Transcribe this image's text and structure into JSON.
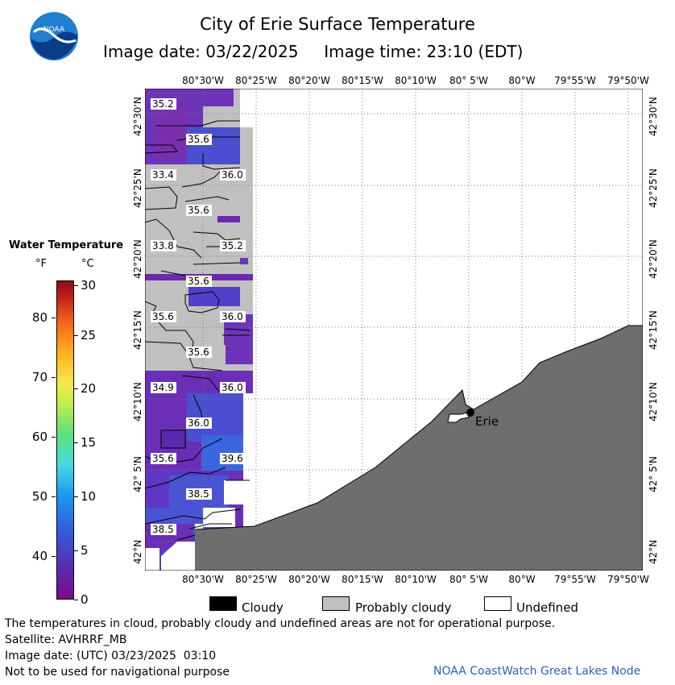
{
  "title": "City of Erie Surface Temperature",
  "subtitle": {
    "date": "Image date: 03/22/2025",
    "time": "Image time: 23:10 (EDT)"
  },
  "logo_text": "NOAA",
  "map": {
    "lon_labels": [
      "80°30'W",
      "80°25'W",
      "80°20'W",
      "80°15'W",
      "80°10'W",
      "80° 5'W",
      "80°W",
      "79°55'W",
      "79°50'W"
    ],
    "lat_labels": [
      "42°30'N",
      "42°25'N",
      "42°20'N",
      "42°15'N",
      "42°10'N",
      "42° 5'N",
      "42°N"
    ],
    "city": "Erie",
    "contour_labels": [
      "35.2",
      "35.6",
      "33.4",
      "36.0",
      "35.6",
      "33.8",
      "35.2",
      "35.6",
      "35.6",
      "36.0",
      "35.6",
      "34.9",
      "36.0",
      "36.0",
      "35.6",
      "39.6",
      "38.5",
      "38.5"
    ]
  },
  "legend": {
    "title": "Water Temperature",
    "unit_f": "°F",
    "unit_c": "°C",
    "f_ticks": [
      "80",
      "70",
      "60",
      "50",
      "40"
    ],
    "c_ticks": [
      "30",
      "25",
      "20",
      "15",
      "10",
      "5",
      "0"
    ],
    "colors": {
      "cloudy": "#000000",
      "probably_cloudy": "#c0c0c0",
      "undefined": "#ffffff",
      "land": "#6e6e6e"
    }
  },
  "key": {
    "cloudy": "Cloudy",
    "probably_cloudy": "Probably cloudy",
    "undefined": "Undefined"
  },
  "footer": {
    "note": "The temperatures in cloud, probably cloudy and undefined areas are not for operational purpose.",
    "satellite": "Satellite: AVHRRF_MB",
    "utc_date": "Image date: (UTC) 03/23/2025  03:10",
    "nav": "Not to be used for navigational purpose",
    "credit": "NOAA CoastWatch Great Lakes Node"
  }
}
